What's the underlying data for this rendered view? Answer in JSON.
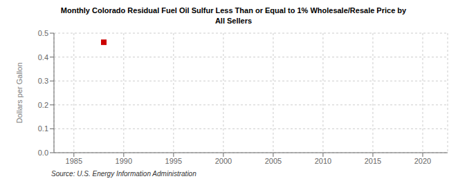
{
  "chart_data": {
    "type": "scatter",
    "title": "Monthly Colorado Residual Fuel Oil Sulfur Less Than or Equal to 1% Wholesale/Resale Price by\nAll Sellers",
    "ylabel": "Dollars per Gallon",
    "source": "Source: U.S. Energy Information Administration",
    "x": [
      1988
    ],
    "values": [
      0.462
    ],
    "color": "#cc0000",
    "marker": "square",
    "xlim": [
      1983,
      2022.5
    ],
    "ylim": [
      0.0,
      0.5
    ],
    "xticks": [
      1985,
      1990,
      1995,
      2000,
      2005,
      2010,
      2015,
      2020
    ],
    "yticks": [
      {
        "value": 0.0,
        "label": "0.0"
      },
      0.1,
      0.2,
      0.3,
      0.4,
      0.5
    ],
    "grid": true
  }
}
